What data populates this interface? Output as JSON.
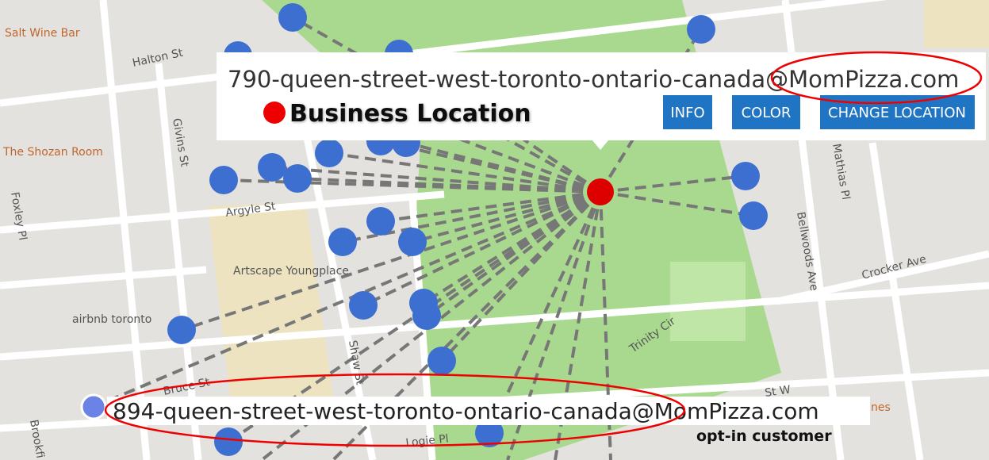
{
  "map_labels": [
    "Salt Wine Bar",
    "Halton St",
    "The Shozan Room",
    "Givins St",
    "Foxley Pl",
    "Argyle St",
    "Artscape Youngplace",
    "airbnb toronto",
    "Shaw St",
    "Bruce St",
    "Logie Pl",
    "Brookfi",
    "Trinity Cir",
    "Bellwoods Ave",
    "Crocker Ave",
    "Mathias Pl",
    "St W",
    "nes"
  ],
  "popup": {
    "email": "790-queen-street-west-toronto-ontario-canada@MomPizza.com",
    "legend": "Business Location",
    "buttons": [
      "INFO",
      "COLOR",
      "CHANGE LOCATION"
    ]
  },
  "customer": {
    "email": "894-queen-street-west-toronto-ontario-canada@MomPizza.com",
    "note": "opt-in customer"
  }
}
